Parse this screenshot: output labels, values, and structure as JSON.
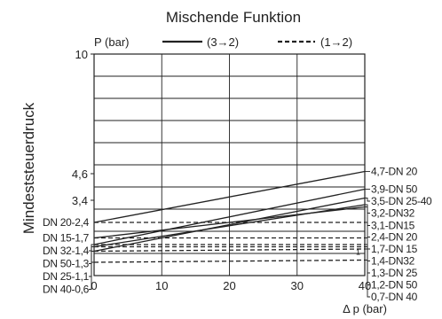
{
  "chart_data": {
    "type": "line",
    "title": "Mischende Funktion",
    "ylabel": "Mindeststeuerdruck",
    "y_unit_label": "P (bar)",
    "xlabel": "Δ p (bar)",
    "xlim": [
      0,
      40
    ],
    "ylim": [
      0,
      10
    ],
    "x_ticks": [
      0,
      10,
      20,
      30,
      40
    ],
    "y_tick_labels": [
      {
        "value": 10,
        "label": "10"
      },
      {
        "value": 4.6,
        "label": "4,6"
      },
      {
        "value": 3.4,
        "label": "3,4"
      }
    ],
    "grid": true,
    "legend": {
      "position": "top",
      "entries": [
        {
          "style": "solid",
          "label": "(3→2)"
        },
        {
          "style": "dashed",
          "label": "(1→2)"
        }
      ]
    },
    "series": [
      {
        "style": "solid",
        "x": [
          0,
          40
        ],
        "y": [
          2.4,
          4.7
        ],
        "end_label": "4,7-DN 20"
      },
      {
        "style": "solid",
        "x": [
          0,
          40
        ],
        "y": [
          1.4,
          3.9
        ],
        "end_label": "3,9-DN 50"
      },
      {
        "style": "solid",
        "x": [
          0,
          40
        ],
        "y": [
          1.1,
          3.5
        ],
        "end_label": "3,5-DN 25-40"
      },
      {
        "style": "solid",
        "x": [
          0,
          40
        ],
        "y": [
          1.3,
          3.2
        ],
        "end_label": "3,2-DN32"
      },
      {
        "style": "solid",
        "x": [
          0,
          40
        ],
        "y": [
          1.7,
          3.1
        ],
        "end_label": "3,1-DN15"
      },
      {
        "style": "dashed",
        "x": [
          0,
          40
        ],
        "y": [
          2.4,
          2.4
        ],
        "start_label": "DN 20-2,4",
        "end_label": "2,4-DN 20"
      },
      {
        "style": "dashed",
        "x": [
          0,
          40
        ],
        "y": [
          1.7,
          1.7
        ],
        "start_label": "DN 15-1,7",
        "end_label": "1,7-DN 15"
      },
      {
        "style": "dashed",
        "x": [
          0,
          40
        ],
        "y": [
          1.4,
          1.4
        ],
        "start_label": "DN 32-1,4",
        "end_label": "1,4-DN32"
      },
      {
        "style": "dashed",
        "x": [
          0,
          40
        ],
        "y": [
          1.3,
          1.3
        ],
        "start_label": "DN 50-1,3",
        "end_label": "1,3-DN 25"
      },
      {
        "style": "dashed",
        "x": [
          0,
          40
        ],
        "y": [
          1.1,
          1.2
        ],
        "start_label": "DN 25-1,1",
        "end_label": "1,2-DN 50"
      },
      {
        "style": "dashed",
        "x": [
          0,
          40
        ],
        "y": [
          0.6,
          0.7
        ],
        "start_label": "DN 40-0,6",
        "end_label": "0,7-DN 40"
      }
    ],
    "annotations": [
      {
        "text": "1",
        "x": 39,
        "y": 1.1
      }
    ]
  }
}
